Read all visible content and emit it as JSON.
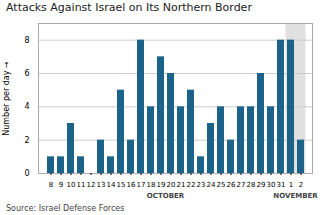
{
  "chart_data": {
    "type": "bar",
    "title": "Attacks Against Israel on Its Northern Border",
    "ylabel": "Number per day",
    "caption": "Source: Israel Defense Forces",
    "annotations": [
      {
        "text": "OCTOBER",
        "from": "8",
        "to": "31"
      },
      {
        "text": "NOVEMBER",
        "from": "1",
        "to": "2",
        "color": "#e0e0e0"
      }
    ],
    "categories": [
      "8",
      "9",
      "10",
      "11",
      "12",
      "13",
      "14",
      "15",
      "16",
      "17",
      "18",
      "19",
      "20",
      "21",
      "22",
      "23",
      "24",
      "25",
      "26",
      "27",
      "28",
      "29",
      "30",
      "31",
      "1",
      "2"
    ],
    "values": [
      1,
      1,
      3,
      1,
      0,
      2,
      1,
      5,
      2,
      8,
      4,
      7,
      6,
      4,
      5,
      1,
      3,
      4,
      2,
      4,
      4,
      6,
      4,
      8,
      8,
      2
    ],
    "color": "#1b6389",
    "ylim": [
      0,
      9
    ],
    "yticks": [
      0,
      2,
      4,
      6,
      8
    ],
    "grid": true
  }
}
